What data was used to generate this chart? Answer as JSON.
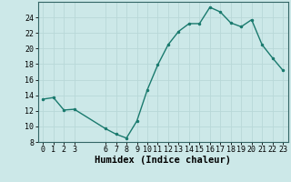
{
  "x": [
    0,
    1,
    2,
    3,
    6,
    7,
    8,
    9,
    10,
    11,
    12,
    13,
    14,
    15,
    16,
    17,
    18,
    19,
    20,
    21,
    22,
    23
  ],
  "y": [
    13.5,
    13.7,
    12.1,
    12.2,
    9.7,
    9.0,
    8.5,
    10.7,
    14.7,
    17.9,
    20.5,
    22.2,
    23.2,
    23.2,
    25.3,
    24.7,
    23.3,
    22.8,
    23.7,
    20.5,
    18.8,
    17.2
  ],
  "line_color": "#1a7a6e",
  "marker": ".",
  "marker_size": 3,
  "bg_color": "#cce8e8",
  "grid_color": "#b8d8d8",
  "xlabel": "Humidex (Indice chaleur)",
  "ylim": [
    8,
    26
  ],
  "xlim": [
    -0.5,
    23.5
  ],
  "yticks": [
    8,
    10,
    12,
    14,
    16,
    18,
    20,
    22,
    24
  ],
  "xticks": [
    0,
    1,
    2,
    3,
    6,
    7,
    8,
    9,
    10,
    11,
    12,
    13,
    14,
    15,
    16,
    17,
    18,
    19,
    20,
    21,
    22,
    23
  ],
  "xlabel_fontsize": 7.5,
  "tick_fontsize": 6,
  "line_width": 1.0
}
